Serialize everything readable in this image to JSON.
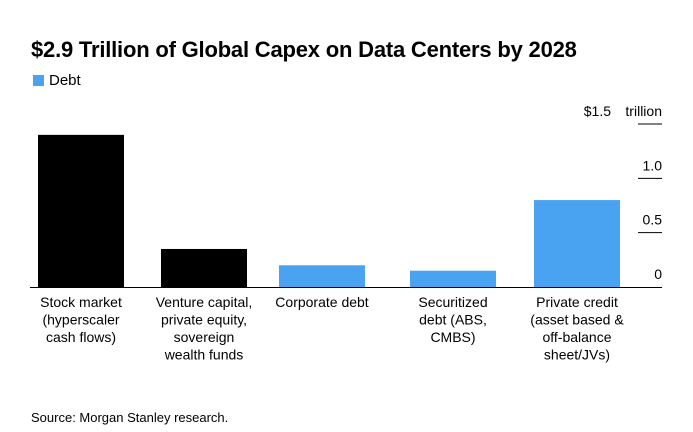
{
  "chart_data": {
    "type": "bar",
    "title": "$2.9 Trillion of Global Capex on Data Centers by 2028",
    "legend": [
      {
        "label": "Debt",
        "color": "#4aa3f0"
      }
    ],
    "categories": [
      "Stock market (hyperscaler cash flows)",
      "Venture capital, private equity, sovereign wealth funds",
      "Corporate debt",
      "Securitized debt (ABS, CMBS)",
      "Private credit (asset based & off-balance sheet/JVs)"
    ],
    "category_label_lines": [
      [
        "Stock market",
        "(hyperscaler",
        "cash flows)"
      ],
      [
        "Venture capital,",
        "private equity,",
        "sovereign",
        "wealth funds"
      ],
      [
        "Corporate debt"
      ],
      [
        "Securitized",
        "debt (ABS,",
        "CMBS)"
      ],
      [
        "Private credit",
        "(asset based &",
        "off-balance",
        "sheet/JVs)"
      ]
    ],
    "values": [
      1.4,
      0.35,
      0.2,
      0.15,
      0.8
    ],
    "is_debt": [
      false,
      false,
      true,
      true,
      true
    ],
    "colors": {
      "equity": "#000000",
      "debt": "#4aa3f0"
    },
    "ylim": [
      0,
      1.5
    ],
    "y_ticks": [
      0,
      0.5,
      1.0,
      1.5
    ],
    "y_tick_labels": [
      "0",
      "0.5",
      "1.0",
      "$1.5"
    ],
    "y_unit": "trillion",
    "ylabel": "",
    "xlabel": "",
    "grid": false
  },
  "source": "Source: Morgan Stanley research."
}
